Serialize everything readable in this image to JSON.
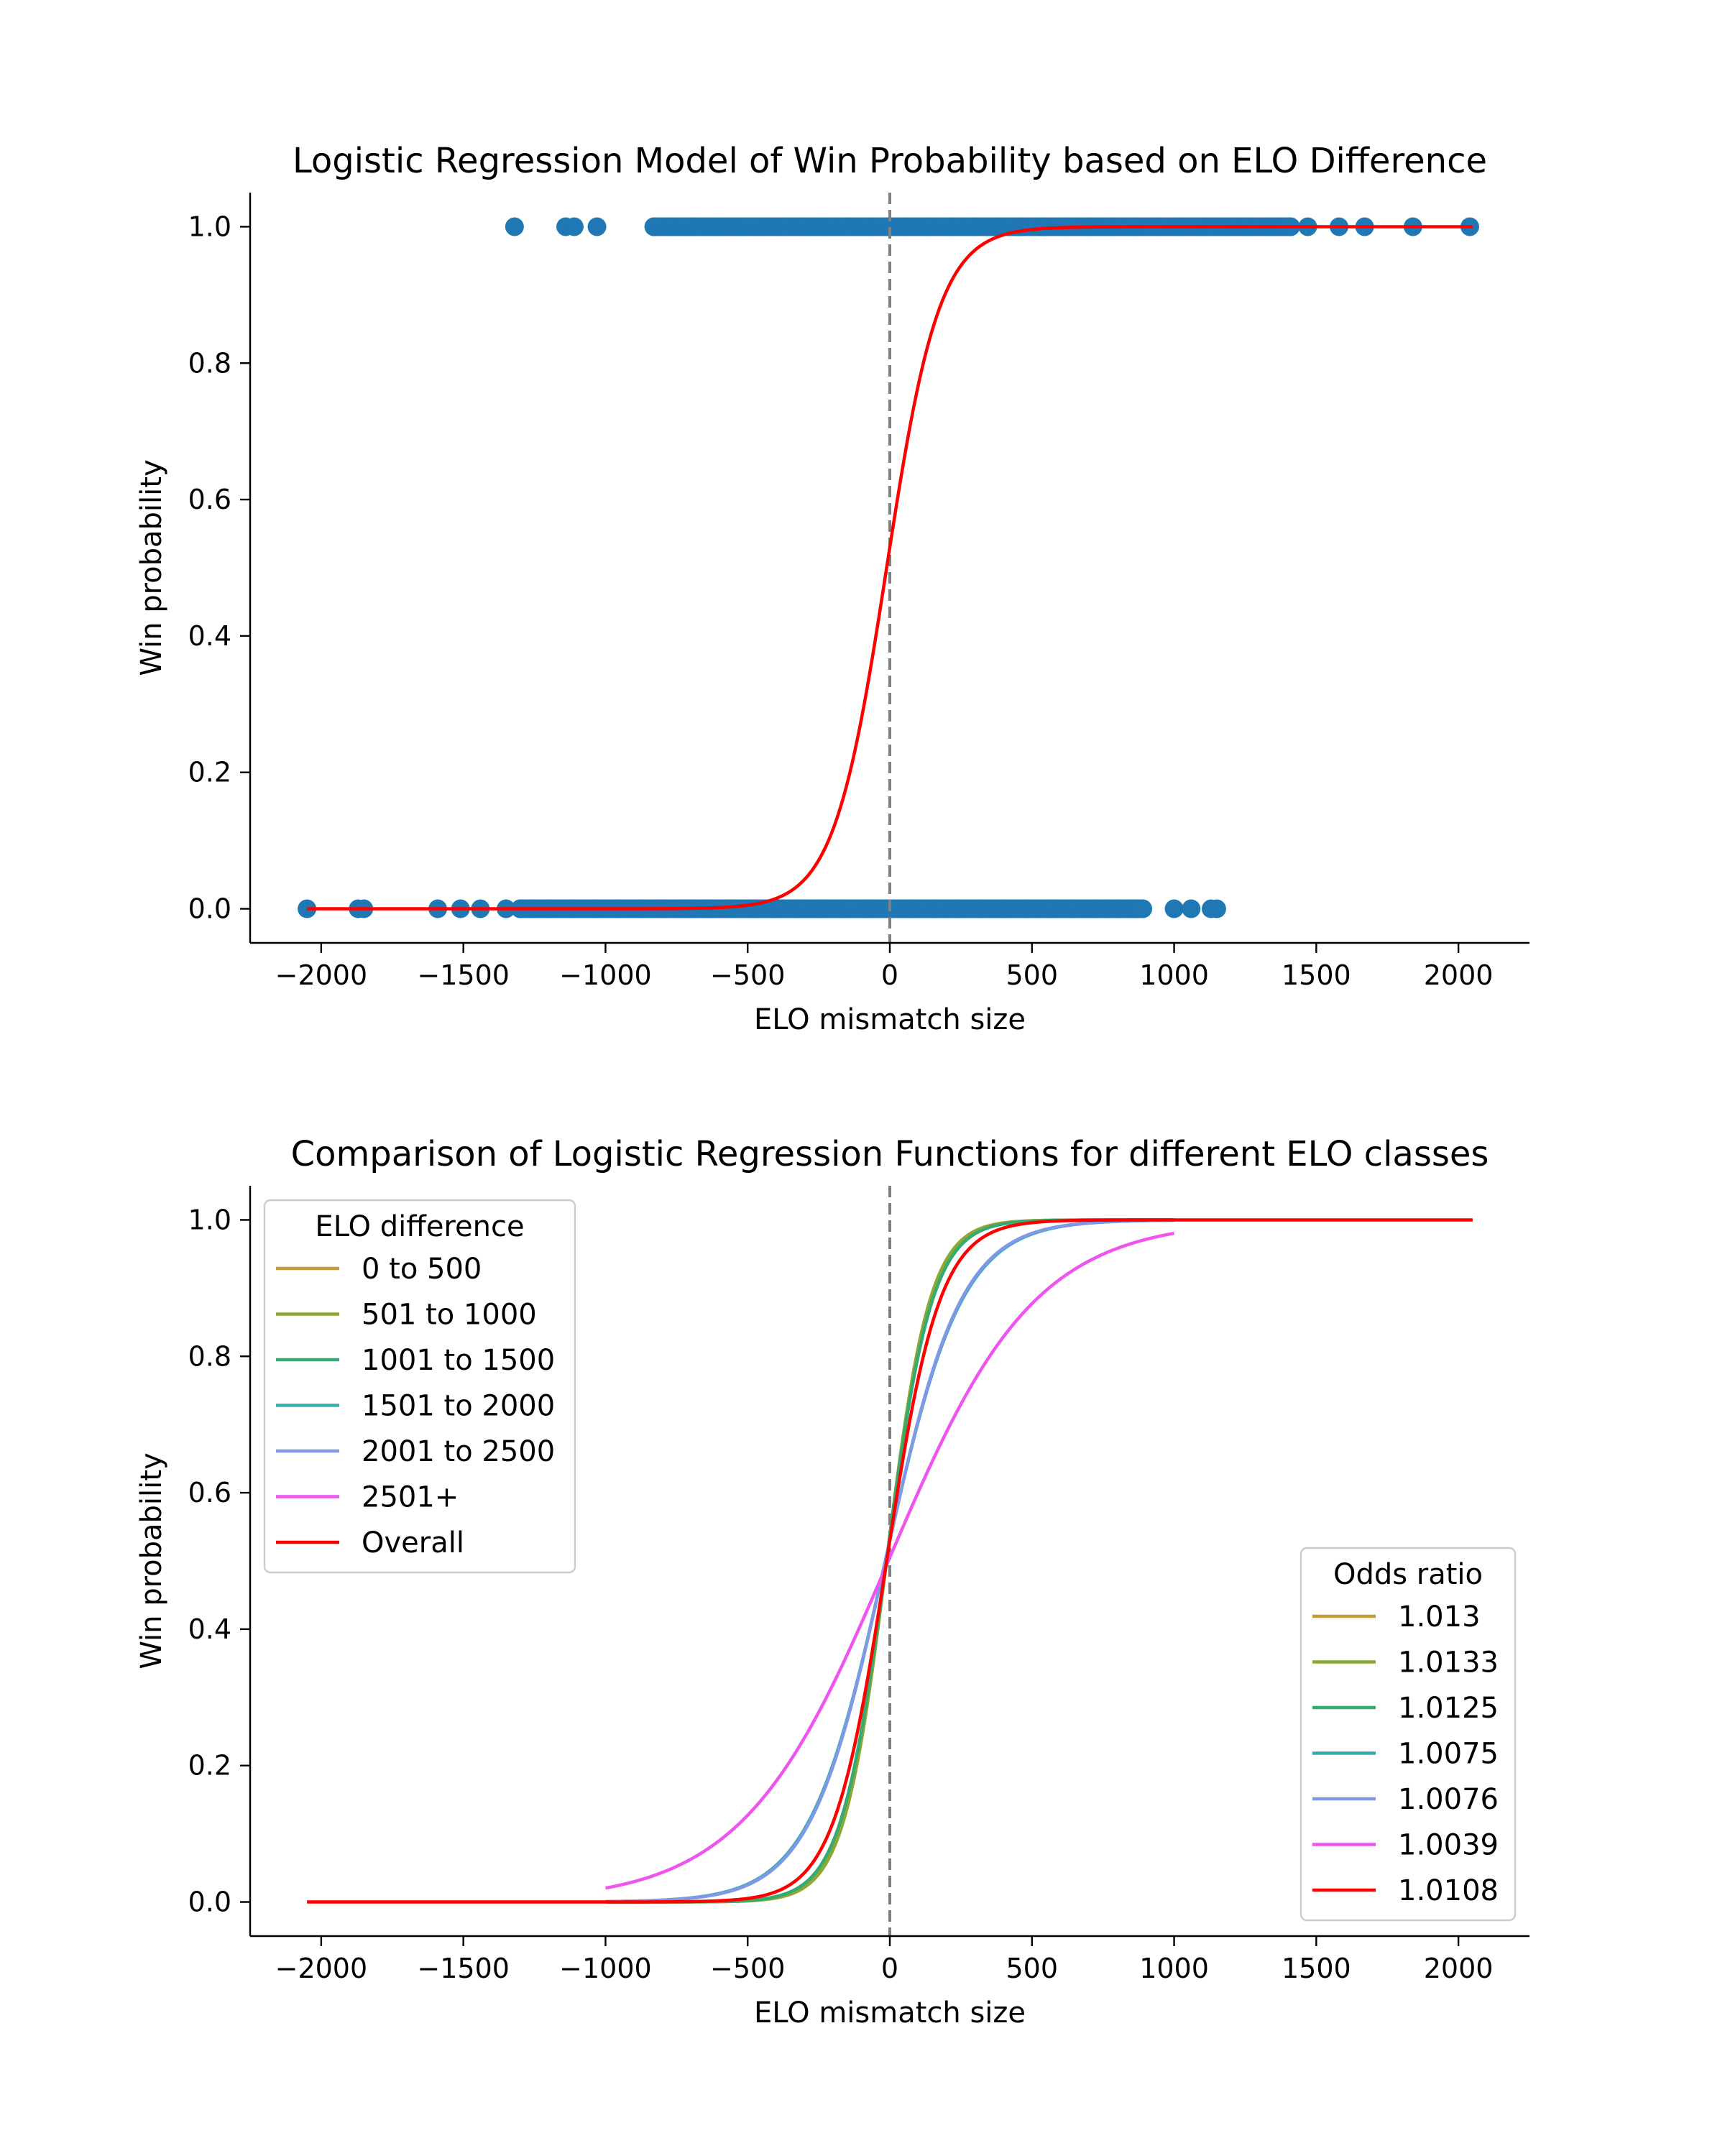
{
  "chart_data": [
    {
      "type": "scatter",
      "title": "Logistic Regression Model of Win Probability based on ELO Difference",
      "xlabel": "ELO mismatch size",
      "ylabel": "Win probability",
      "xlim": [
        -2250,
        2250
      ],
      "ylim": [
        -0.05,
        1.05
      ],
      "xticks": [
        -2000,
        -1500,
        -1000,
        -500,
        0,
        500,
        1000,
        1500,
        2000
      ],
      "xtick_labels": [
        "−2000",
        "−1500",
        "−1000",
        "−500",
        "0",
        "500",
        "1000",
        "1500",
        "2000"
      ],
      "yticks": [
        0.0,
        0.2,
        0.4,
        0.6,
        0.8,
        1.0
      ],
      "ytick_labels": [
        "0.0",
        "0.2",
        "0.4",
        "0.6",
        "0.8",
        "1.0"
      ],
      "reference_line_x": 0,
      "scatter_color": "#1f77b4",
      "fit_color": "#ff0000",
      "wins_sample_x": [
        -1320,
        -1140,
        -1110,
        -1030,
        -830,
        -780,
        -700,
        -620,
        -540,
        -460,
        -380,
        -300,
        -220,
        -140,
        -60,
        0,
        60,
        140,
        220,
        300,
        380,
        460,
        540,
        620,
        700,
        780,
        860,
        940,
        1020,
        1100,
        1180,
        1260,
        1340,
        1380,
        1410,
        1470,
        1580,
        1670,
        1840,
        2040
      ],
      "wins_dense_range": [
        -830,
        1420
      ],
      "losses_sample_x": [
        -2050,
        -1870,
        -1850,
        -1590,
        -1510,
        -1440,
        -1350,
        -1300,
        -1260,
        -1200,
        -1120,
        -1040,
        -960,
        -880,
        -800,
        -720,
        -640,
        -560,
        -480,
        -400,
        -320,
        -240,
        -160,
        -80,
        0,
        80,
        160,
        240,
        320,
        400,
        480,
        560,
        640,
        720,
        760,
        800,
        860,
        890,
        1000,
        1060,
        1130,
        1150
      ],
      "losses_dense_range": [
        -1300,
        890
      ],
      "fit_curve": {
        "odds_ratio": 1.0108,
        "x_range": [
          -2050,
          2050
        ]
      }
    },
    {
      "type": "line",
      "title": "Comparison of Logistic Regression Functions for different ELO classes",
      "xlabel": "ELO mismatch size",
      "ylabel": "Win probability",
      "xlim": [
        -2250,
        2250
      ],
      "ylim": [
        -0.05,
        1.05
      ],
      "xticks": [
        -2000,
        -1500,
        -1000,
        -500,
        0,
        500,
        1000,
        1500,
        2000
      ],
      "xtick_labels": [
        "−2000",
        "−1500",
        "−1000",
        "−500",
        "0",
        "500",
        "1000",
        "1500",
        "2000"
      ],
      "yticks": [
        0.0,
        0.2,
        0.4,
        0.6,
        0.8,
        1.0
      ],
      "ytick_labels": [
        "0.0",
        "0.2",
        "0.4",
        "0.6",
        "0.8",
        "1.0"
      ],
      "reference_line_x": 0,
      "legend_title_left": "ELO difference",
      "legend_title_right": "Odds ratio",
      "legend_left_placement": "upper-left",
      "legend_right_placement": "lower-right",
      "series": [
        {
          "name": "0 to 500",
          "odds_label": "1.013",
          "odds_ratio": 1.013,
          "intercept": 0.15,
          "x_range": [
            -1000,
            1000
          ],
          "color": "#c49a3a"
        },
        {
          "name": "501 to 1000",
          "odds_label": "1.0133",
          "odds_ratio": 1.0133,
          "intercept": 0.15,
          "x_range": [
            -1000,
            1000
          ],
          "color": "#8aa832"
        },
        {
          "name": "1001 to 1500",
          "odds_label": "1.0125",
          "odds_ratio": 1.0125,
          "intercept": 0.15,
          "x_range": [
            -1000,
            1000
          ],
          "color": "#35aa73"
        },
        {
          "name": "1501 to 2000",
          "odds_label": "1.0075",
          "odds_ratio": 1.0075,
          "intercept": 0.12,
          "x_range": [
            -1000,
            1000
          ],
          "color": "#35aab0"
        },
        {
          "name": "2001 to 2500",
          "odds_label": "1.0076",
          "odds_ratio": 1.0076,
          "intercept": 0.12,
          "x_range": [
            -1000,
            1000
          ],
          "color": "#7f99e6"
        },
        {
          "name": "2501+",
          "odds_label": "1.0039",
          "odds_ratio": 1.0039,
          "intercept": 0.02,
          "x_range": [
            -1000,
            1000
          ],
          "color": "#ee55ee"
        },
        {
          "name": "Overall",
          "odds_label": "1.0108",
          "odds_ratio": 1.0108,
          "intercept": 0.12,
          "x_range": [
            -2050,
            2050
          ],
          "color": "#ff0000"
        }
      ]
    }
  ]
}
